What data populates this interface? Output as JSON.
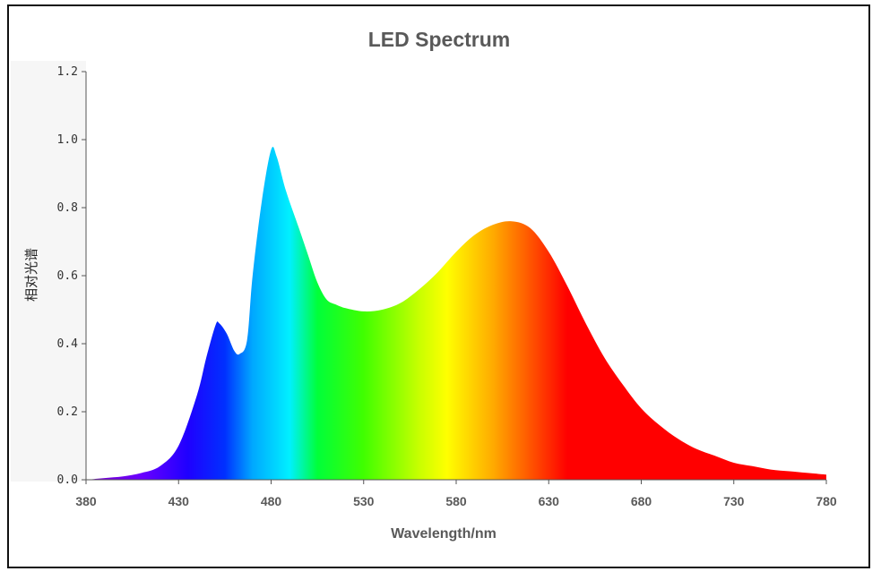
{
  "chart_data": {
    "type": "area",
    "title": "LED Spectrum",
    "xlabel": "Wavelength/nm",
    "ylabel": "相对光谱",
    "xlim": [
      380,
      780
    ],
    "ylim": [
      0,
      1.2
    ],
    "x_ticks": [
      "380",
      "430",
      "480",
      "530",
      "580",
      "630",
      "680",
      "730",
      "780"
    ],
    "y_ticks": [
      "0.0",
      "0.2",
      "0.4",
      "0.6",
      "0.8",
      "1.0",
      "1.2"
    ],
    "grid": false,
    "fill": "visible-spectrum gradient",
    "points": [
      [
        380,
        0.0
      ],
      [
        390,
        0.005
      ],
      [
        400,
        0.01
      ],
      [
        410,
        0.02
      ],
      [
        420,
        0.04
      ],
      [
        430,
        0.1
      ],
      [
        440,
        0.25
      ],
      [
        445,
        0.36
      ],
      [
        450,
        0.455
      ],
      [
        452,
        0.46
      ],
      [
        456,
        0.43
      ],
      [
        460,
        0.38
      ],
      [
        463,
        0.37
      ],
      [
        467,
        0.41
      ],
      [
        470,
        0.6
      ],
      [
        475,
        0.82
      ],
      [
        480,
        0.97
      ],
      [
        483,
        0.95
      ],
      [
        488,
        0.85
      ],
      [
        495,
        0.74
      ],
      [
        500,
        0.66
      ],
      [
        505,
        0.58
      ],
      [
        510,
        0.53
      ],
      [
        515,
        0.515
      ],
      [
        520,
        0.505
      ],
      [
        530,
        0.495
      ],
      [
        540,
        0.5
      ],
      [
        550,
        0.52
      ],
      [
        560,
        0.56
      ],
      [
        570,
        0.61
      ],
      [
        580,
        0.67
      ],
      [
        590,
        0.72
      ],
      [
        600,
        0.75
      ],
      [
        610,
        0.76
      ],
      [
        620,
        0.74
      ],
      [
        630,
        0.67
      ],
      [
        640,
        0.57
      ],
      [
        650,
        0.46
      ],
      [
        660,
        0.36
      ],
      [
        670,
        0.28
      ],
      [
        680,
        0.21
      ],
      [
        690,
        0.16
      ],
      [
        700,
        0.12
      ],
      [
        710,
        0.09
      ],
      [
        720,
        0.07
      ],
      [
        730,
        0.05
      ],
      [
        740,
        0.04
      ],
      [
        750,
        0.03
      ],
      [
        760,
        0.025
      ],
      [
        770,
        0.02
      ],
      [
        780,
        0.015
      ]
    ],
    "gradient_stops": [
      {
        "wavelength": 380,
        "color": "#7a00c8"
      },
      {
        "wavelength": 410,
        "color": "#6a00ff"
      },
      {
        "wavelength": 435,
        "color": "#1f00ff"
      },
      {
        "wavelength": 455,
        "color": "#0030ff"
      },
      {
        "wavelength": 470,
        "color": "#00a8ff"
      },
      {
        "wavelength": 490,
        "color": "#00f0ff"
      },
      {
        "wavelength": 505,
        "color": "#00ff3a"
      },
      {
        "wavelength": 530,
        "color": "#40ff00"
      },
      {
        "wavelength": 560,
        "color": "#c8ff00"
      },
      {
        "wavelength": 575,
        "color": "#ffff00"
      },
      {
        "wavelength": 600,
        "color": "#ffaa00"
      },
      {
        "wavelength": 620,
        "color": "#ff5500"
      },
      {
        "wavelength": 640,
        "color": "#ff0000"
      },
      {
        "wavelength": 780,
        "color": "#ff0000"
      }
    ]
  },
  "colors": {
    "axis": "#555555",
    "title": "#595959",
    "frame": "#111111"
  }
}
